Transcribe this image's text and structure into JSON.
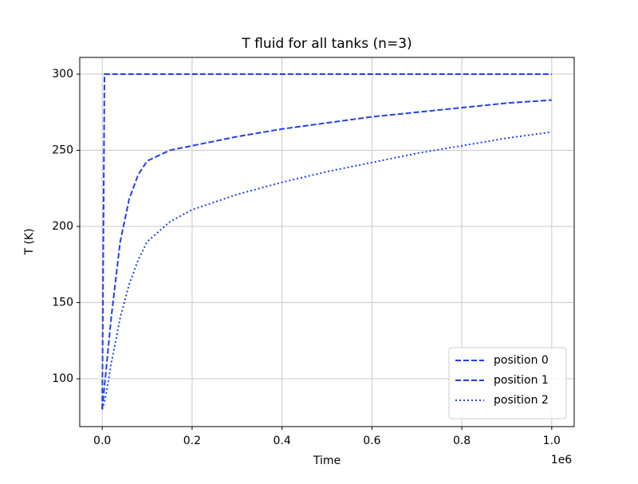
{
  "chart_data": {
    "type": "line",
    "title": "T fluid for all tanks (n=3)",
    "x_label": "Time",
    "y_label": "T (K)",
    "x_offset_label": "1e6",
    "x": [
      0,
      5000,
      10000,
      20000,
      40000,
      60000,
      80000,
      100000,
      150000,
      200000,
      300000,
      400000,
      500000,
      600000,
      700000,
      800000,
      900000,
      1000000
    ],
    "series": [
      {
        "name": "position 0",
        "color": "#1f3ff0",
        "linestyle": "dashed",
        "values": [
          80,
          300,
          300,
          300,
          300,
          300,
          300,
          300,
          300,
          300,
          300,
          300,
          300,
          300,
          300,
          300,
          300,
          300
        ]
      },
      {
        "name": "position 1",
        "color": "#1f3ff0",
        "linestyle": "dashed",
        "values": [
          80,
          95,
          110,
          140,
          190,
          218,
          234,
          243,
          250,
          253,
          259,
          264,
          268,
          272,
          275,
          278,
          281,
          283
        ]
      },
      {
        "name": "position 2",
        "color": "#1f3ff0",
        "linestyle": "dotted",
        "values": [
          80,
          85,
          92,
          110,
          140,
          162,
          178,
          190,
          203,
          211,
          221,
          229,
          236,
          242,
          248,
          253,
          258,
          262
        ]
      }
    ],
    "xlim": [
      -50000,
      1050000
    ],
    "ylim": [
      68.6,
      311
    ],
    "xticks": [
      {
        "value": 0,
        "label": "0.0"
      },
      {
        "value": 200000,
        "label": "0.2"
      },
      {
        "value": 400000,
        "label": "0.4"
      },
      {
        "value": 600000,
        "label": "0.6"
      },
      {
        "value": 800000,
        "label": "0.8"
      },
      {
        "value": 1000000,
        "label": "1.0"
      }
    ],
    "yticks": [
      100,
      150,
      200,
      250,
      300
    ],
    "grid": true,
    "legend": "lower-right"
  }
}
